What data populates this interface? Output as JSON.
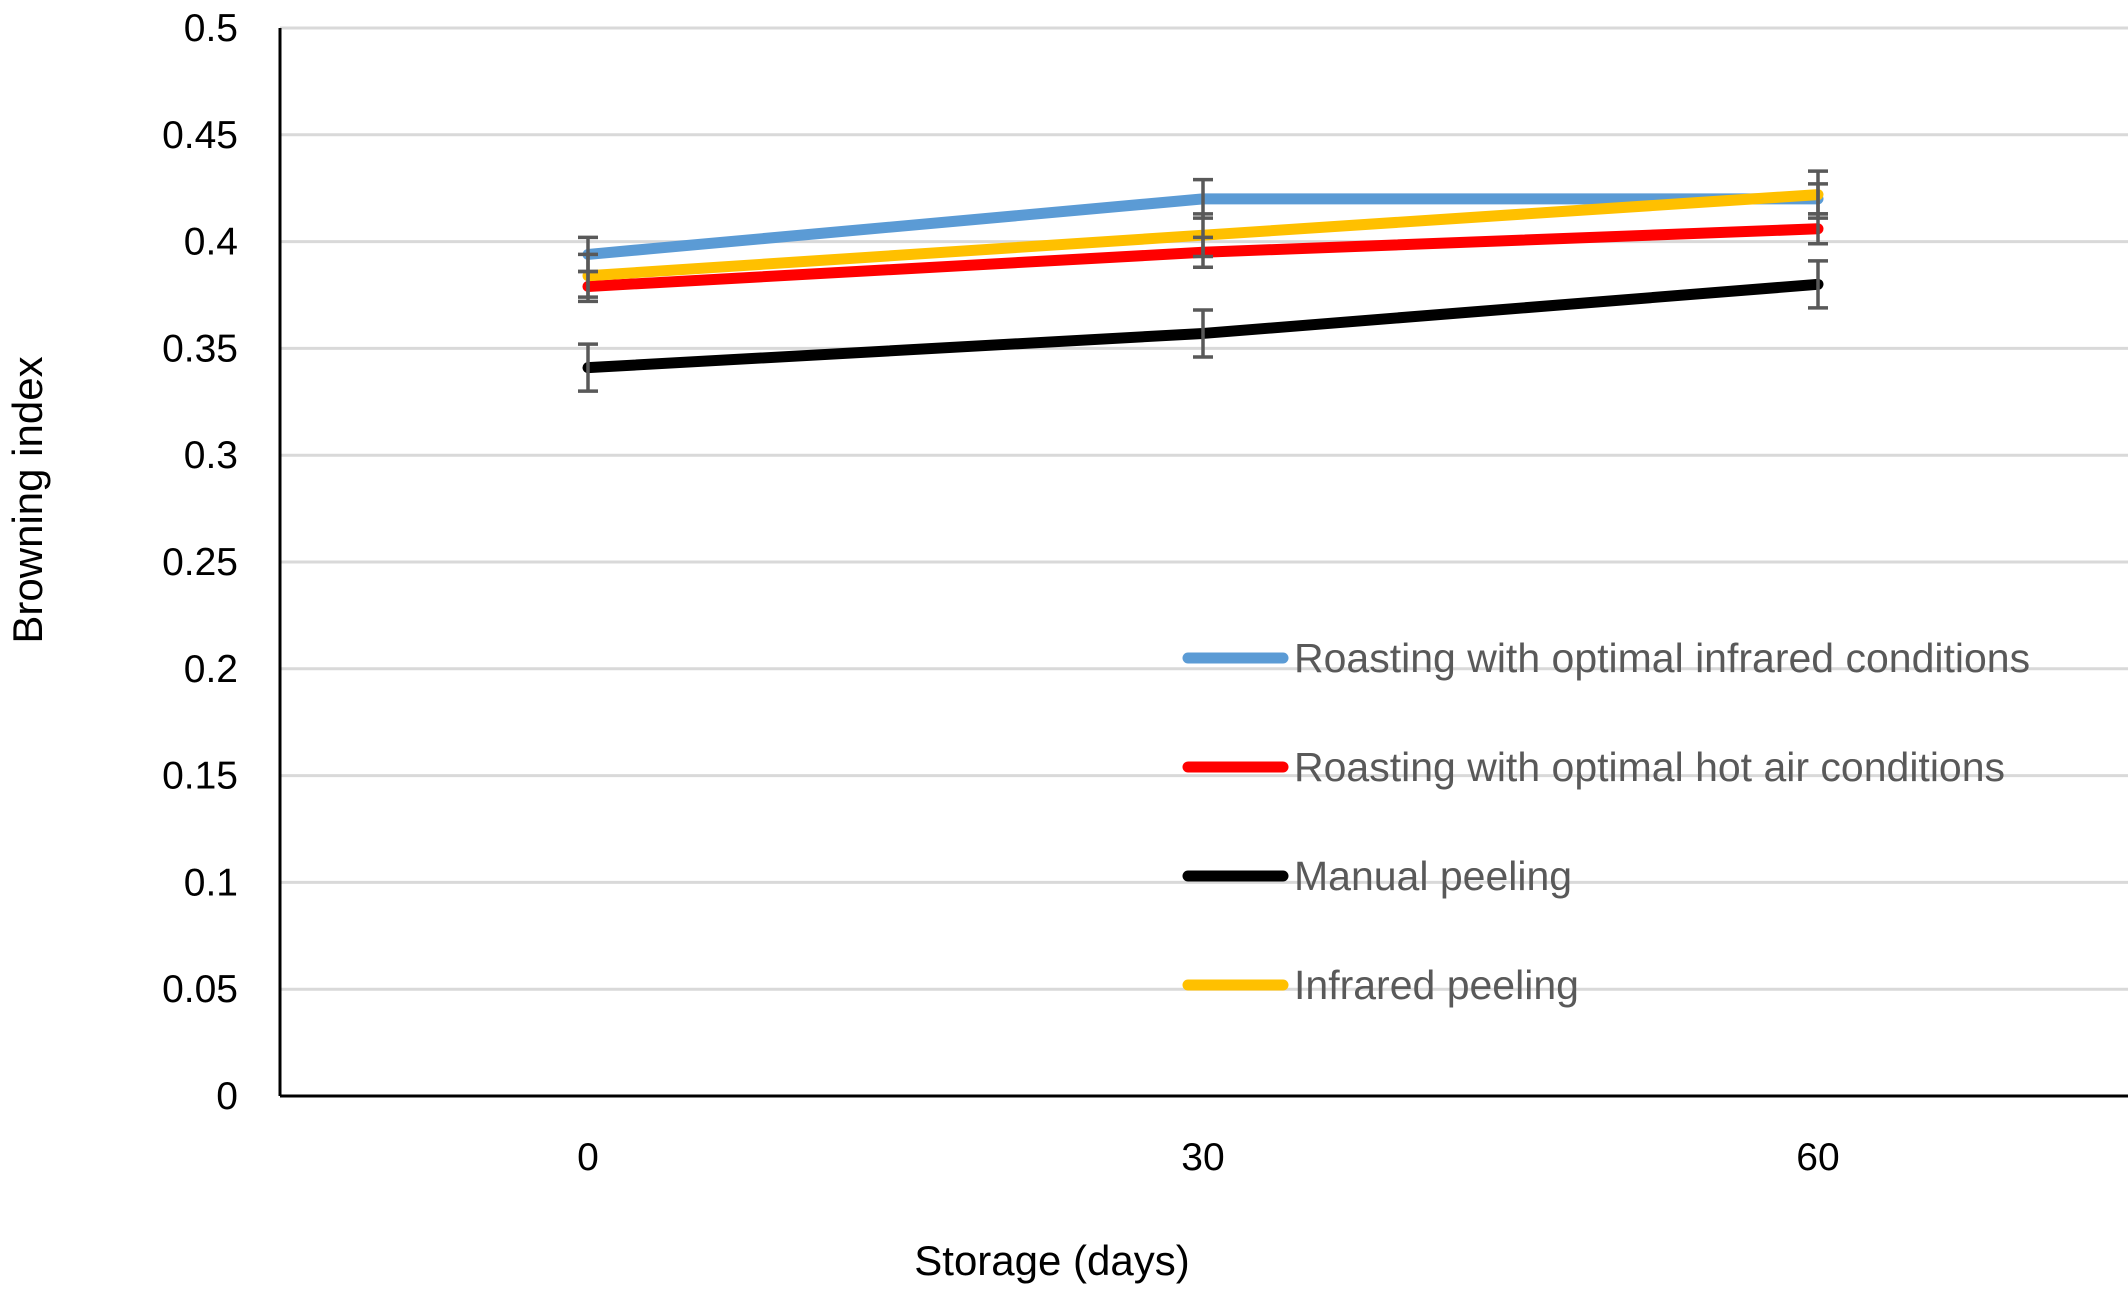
{
  "chart_data": {
    "type": "line",
    "title": "",
    "xlabel": "Storage (days)",
    "ylabel": "Browning index",
    "categories": [
      "0",
      "30",
      "60"
    ],
    "ylim": [
      0,
      0.5
    ],
    "yticks": [
      "0",
      "0.05",
      "0.1",
      "0.15",
      "0.2",
      "0.25",
      "0.3",
      "0.35",
      "0.4",
      "0.45",
      "0.5"
    ],
    "grid": true,
    "legend_position": "bottom-right inside plot",
    "series": [
      {
        "name": "Roasting with optimal infrared conditions",
        "color": "#5B9BD5",
        "values": [
          0.394,
          0.42,
          0.42
        ],
        "errors": [
          0.008,
          0.009,
          0.007
        ]
      },
      {
        "name": "Roasting with optimal hot air conditions",
        "color": "#FF0000",
        "values": [
          0.379,
          0.395,
          0.406
        ],
        "errors": [
          0.007,
          0.007,
          0.007
        ]
      },
      {
        "name": "Manual peeling",
        "color": "#000000",
        "values": [
          0.341,
          0.357,
          0.38
        ],
        "errors": [
          0.011,
          0.011,
          0.011
        ]
      },
      {
        "name": "Infrared peeling",
        "color": "#FFC000",
        "values": [
          0.384,
          0.403,
          0.422
        ],
        "errors": [
          0.01,
          0.01,
          0.011
        ]
      }
    ]
  }
}
